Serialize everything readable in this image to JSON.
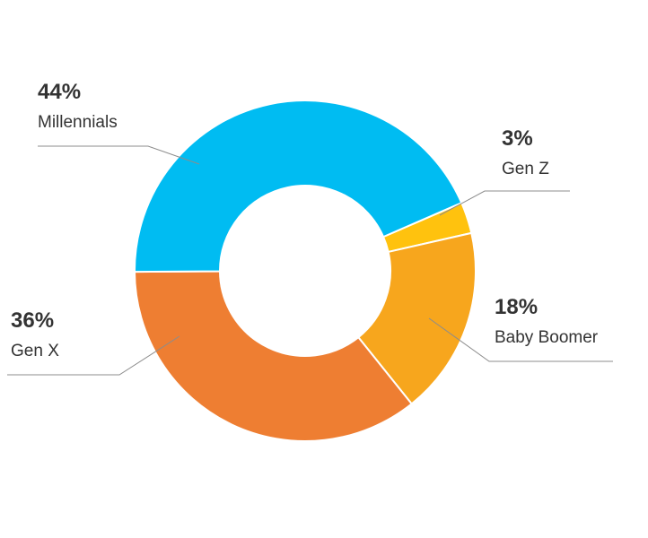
{
  "chart_data": {
    "type": "pie",
    "variant": "donut",
    "title": "",
    "legend": "none",
    "slices": [
      {
        "name": "Gen Z",
        "value": 3,
        "label": "3%",
        "color": "#FFC20E"
      },
      {
        "name": "Baby Boomer",
        "value": 18,
        "label": "18%",
        "color": "#F7A61D"
      },
      {
        "name": "Gen X",
        "value": 36,
        "label": "36%",
        "color": "#EE7E32"
      },
      {
        "name": "Millennials",
        "value": 44,
        "label": "44%",
        "color": "#00BCF2"
      }
    ]
  }
}
